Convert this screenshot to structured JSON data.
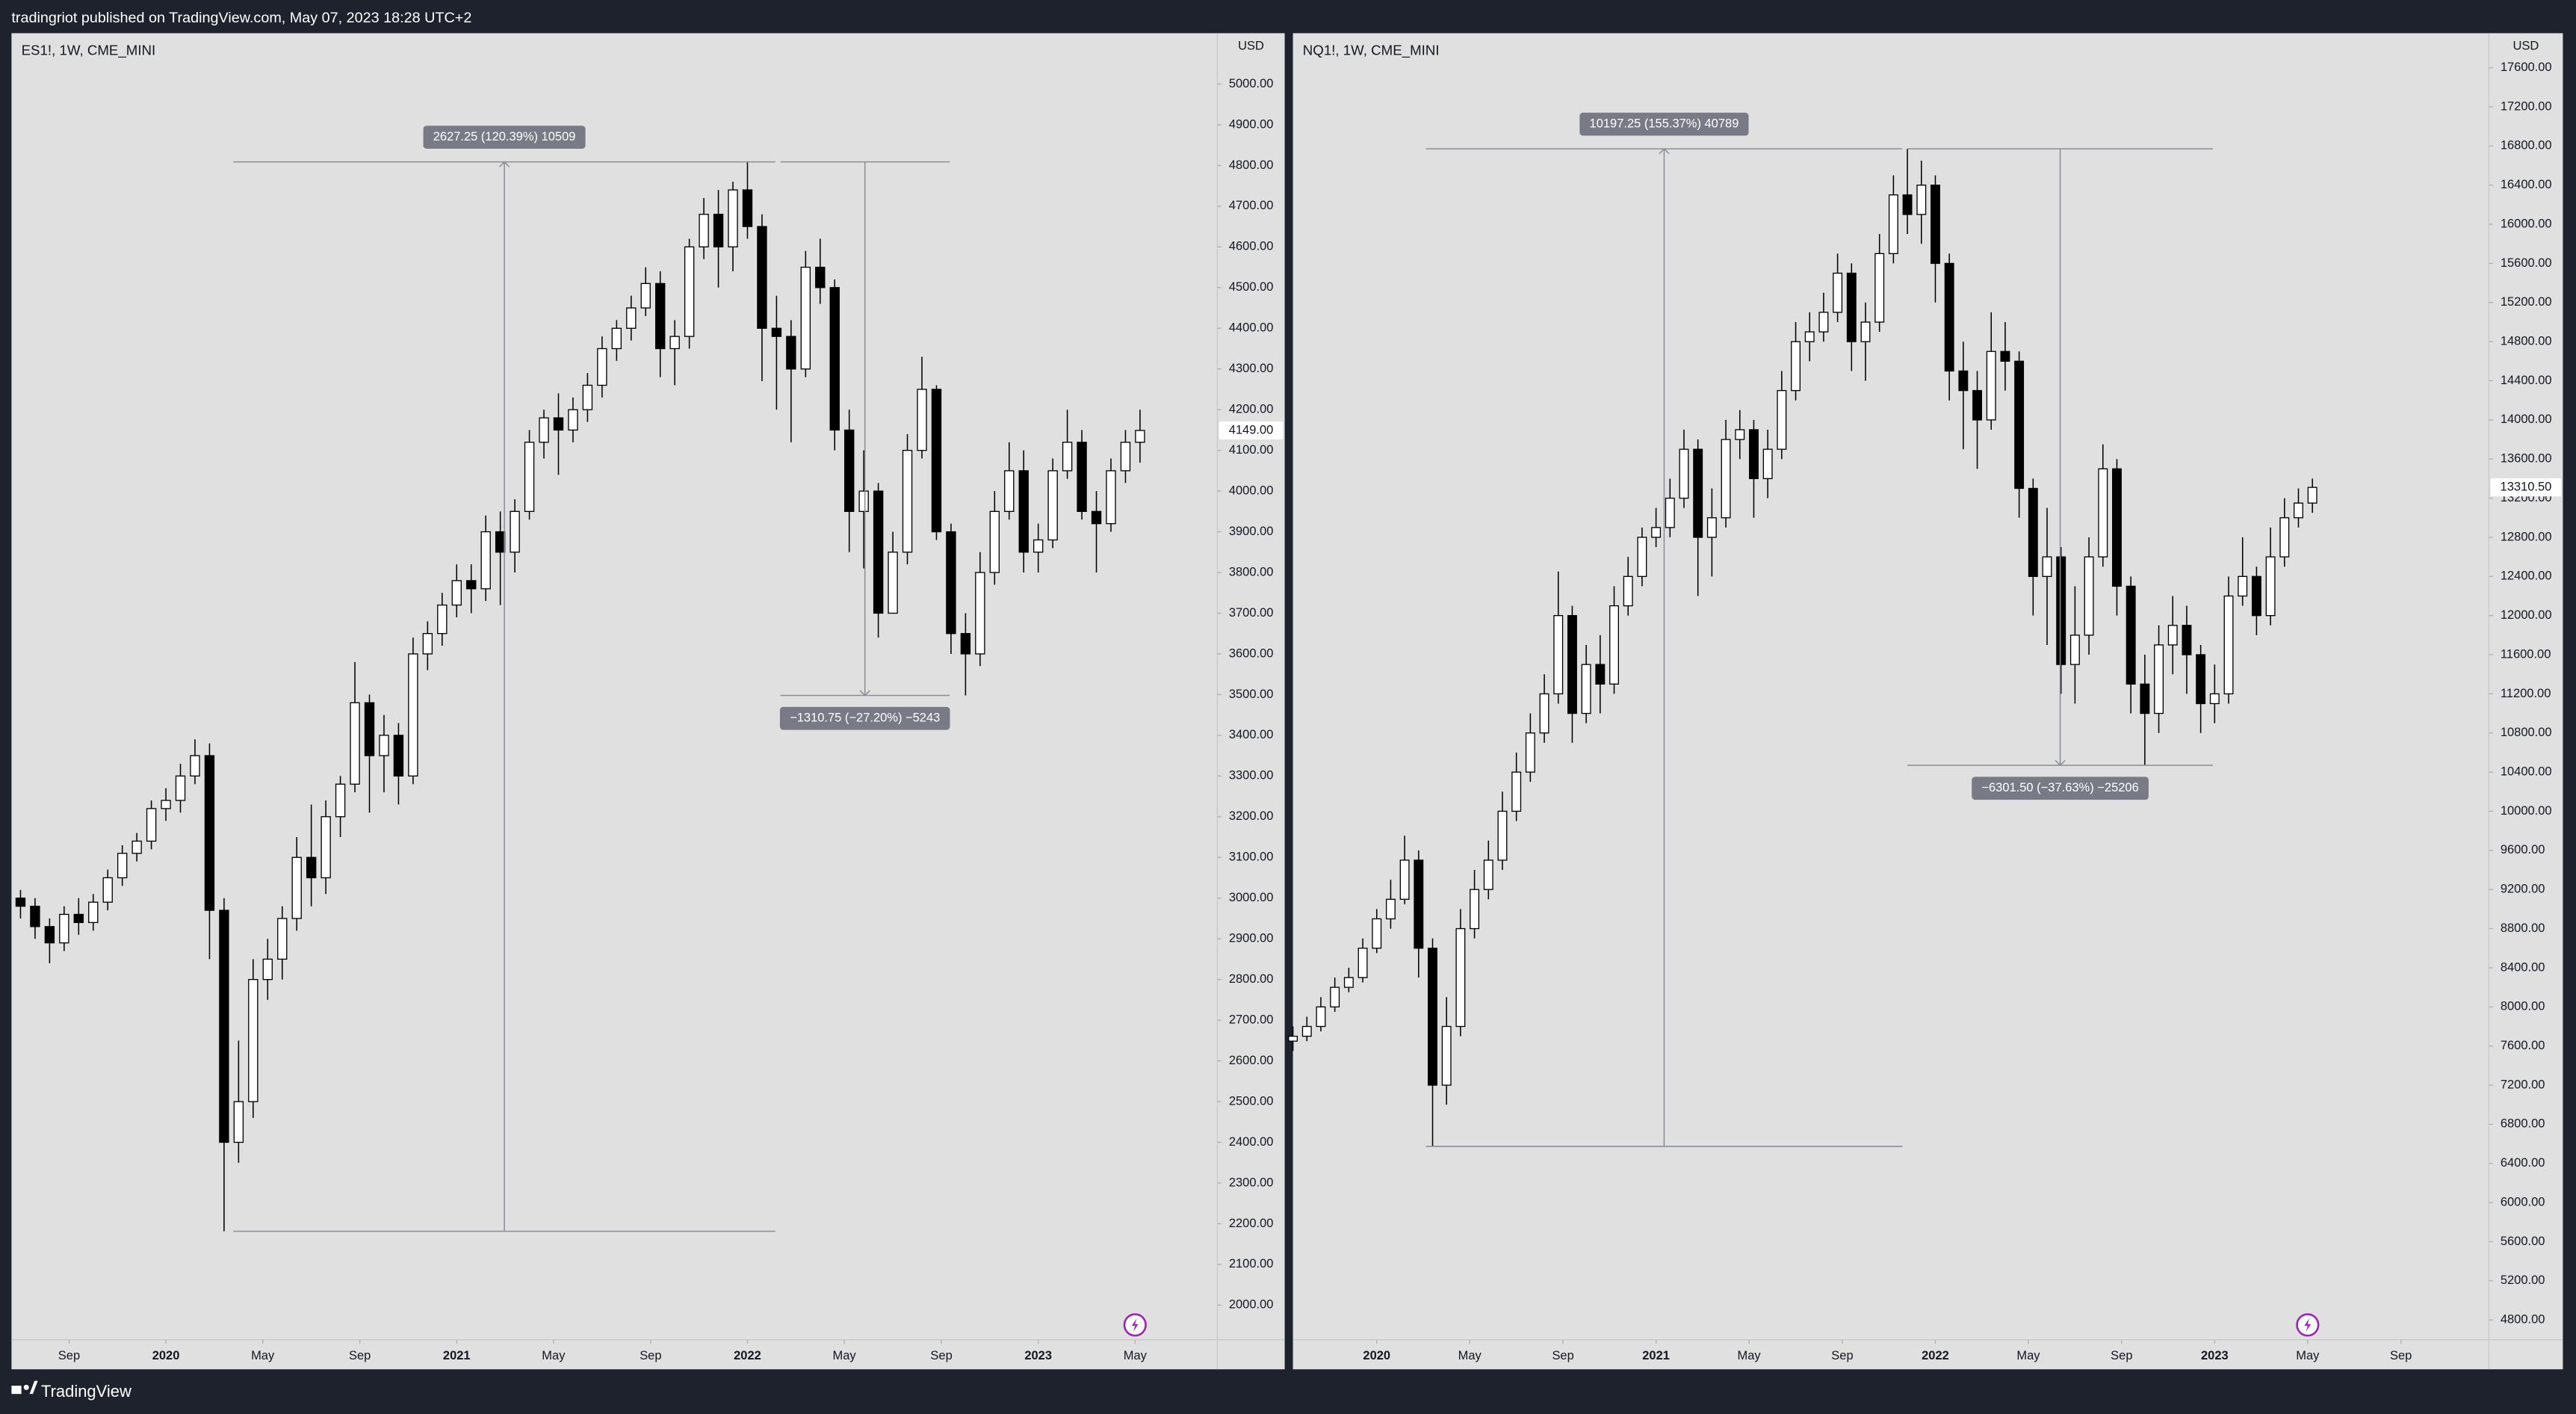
{
  "header": "tradingriot published on TradingView.com, May 07, 2023 18:28 UTC+2",
  "footer": "TradingView",
  "chart_data": [
    {
      "type": "candlestick",
      "title": "ES1!, 1W, CME_MINI",
      "currency": "USD",
      "up_color": "#ffffff",
      "down_color": "#000000",
      "wick_color": "#000000",
      "grid": false,
      "x": [
        2019.5,
        2019.55,
        2019.6,
        2019.65,
        2019.7,
        2019.75,
        2019.8,
        2019.85,
        2019.9,
        2019.95,
        2020,
        2020.05,
        2020.1,
        2020.15,
        2020.2,
        2020.25,
        2020.3,
        2020.35,
        2020.4,
        2020.45,
        2020.5,
        2020.55,
        2020.6,
        2020.65,
        2020.7,
        2020.75,
        2020.8,
        2020.85,
        2020.9,
        2020.95,
        2021,
        2021.05,
        2021.1,
        2021.15,
        2021.2,
        2021.25,
        2021.3,
        2021.35,
        2021.4,
        2021.45,
        2021.5,
        2021.55,
        2021.6,
        2021.65,
        2021.7,
        2021.75,
        2021.8,
        2021.85,
        2021.9,
        2021.95,
        2022,
        2022.05,
        2022.1,
        2022.15,
        2022.2,
        2022.25,
        2022.3,
        2022.35,
        2022.4,
        2022.45,
        2022.5,
        2022.55,
        2022.6,
        2022.65,
        2022.7,
        2022.75,
        2022.8,
        2022.85,
        2022.9,
        2022.95,
        2023,
        2023.05,
        2023.1,
        2023.15,
        2023.2,
        2023.25,
        2023.3,
        2023.35
      ],
      "open": [
        3000,
        2980,
        2930,
        2890,
        2960,
        2940,
        2990,
        3050,
        3110,
        3140,
        3220,
        3240,
        3300,
        3350,
        2970,
        2400,
        2500,
        2800,
        2850,
        2950,
        3100,
        3050,
        3200,
        3280,
        3480,
        3350,
        3400,
        3300,
        3600,
        3650,
        3720,
        3780,
        3760,
        3900,
        3850,
        3950,
        4120,
        4180,
        4150,
        4200,
        4260,
        4350,
        4400,
        4450,
        4510,
        4350,
        4380,
        4600,
        4680,
        4600,
        4740,
        4650,
        4400,
        4380,
        4300,
        4550,
        4500,
        4150,
        3950,
        4000,
        3700,
        3850,
        4100,
        4250,
        3900,
        3650,
        3600,
        3800,
        3950,
        4050,
        3850,
        3880,
        4050,
        4120,
        3950,
        3920,
        4050,
        4120
      ],
      "high": [
        3020,
        3000,
        2950,
        2980,
        3000,
        3010,
        3070,
        3130,
        3160,
        3240,
        3270,
        3330,
        3390,
        3380,
        3000,
        2650,
        2850,
        2900,
        2980,
        3150,
        3230,
        3240,
        3300,
        3580,
        3500,
        3450,
        3430,
        3640,
        3680,
        3750,
        3820,
        3820,
        3940,
        3950,
        3980,
        4150,
        4200,
        4240,
        4230,
        4290,
        4380,
        4420,
        4480,
        4550,
        4540,
        4420,
        4620,
        4720,
        4740,
        4760,
        4808.75,
        4680,
        4480,
        4420,
        4590,
        4620,
        4520,
        4200,
        4100,
        4020,
        3900,
        4140,
        4330,
        4260,
        3920,
        3700,
        3850,
        4000,
        4120,
        4100,
        3920,
        4080,
        4200,
        4150,
        4000,
        4080,
        4150,
        4200
      ],
      "low": [
        2950,
        2900,
        2840,
        2870,
        2910,
        2920,
        2970,
        3030,
        3090,
        3120,
        3190,
        3210,
        3280,
        2850,
        2181.5,
        2350,
        2460,
        2750,
        2800,
        2920,
        2980,
        3010,
        3150,
        3260,
        3210,
        3260,
        3230,
        3280,
        3560,
        3620,
        3690,
        3700,
        3730,
        3720,
        3800,
        3930,
        4080,
        4040,
        4120,
        4170,
        4230,
        4320,
        4370,
        4430,
        4280,
        4260,
        4350,
        4570,
        4500,
        4540,
        4620,
        4270,
        4200,
        4120,
        4280,
        4460,
        4100,
        3850,
        3810,
        3640,
        3700,
        3820,
        4080,
        3880,
        3600,
        3498,
        3570,
        3770,
        3930,
        3800,
        3800,
        3860,
        4030,
        3930,
        3800,
        3900,
        4020,
        4070
      ],
      "close": [
        2980,
        2930,
        2890,
        2960,
        2940,
        2990,
        3050,
        3110,
        3140,
        3220,
        3240,
        3300,
        3350,
        2970,
        2400,
        2500,
        2800,
        2850,
        2950,
        3100,
        3050,
        3200,
        3280,
        3480,
        3350,
        3400,
        3300,
        3600,
        3650,
        3720,
        3780,
        3760,
        3900,
        3850,
        3950,
        4120,
        4180,
        4150,
        4200,
        4260,
        4350,
        4400,
        4450,
        4510,
        4350,
        4380,
        4600,
        4680,
        4600,
        4740,
        4650,
        4400,
        4380,
        4300,
        4550,
        4500,
        4150,
        3950,
        4000,
        3700,
        3850,
        4100,
        4250,
        3900,
        3650,
        3600,
        3800,
        3950,
        4050,
        3850,
        3880,
        4050,
        4120,
        3950,
        3920,
        4050,
        4120,
        4149
      ],
      "last_price": {
        "value": 4149,
        "label": "4149.00"
      },
      "measures": [
        {
          "label": "2627.25 (120.39%) 10509",
          "x": [
            2020.232,
            2022.096
          ],
          "y": [
            2181.5,
            4808.75
          ]
        },
        {
          "label": "−1310.75 (−27.20%) −5243",
          "x": [
            2022.113,
            2022.695
          ],
          "y": [
            4808.75,
            3498
          ]
        }
      ],
      "xlim": [
        2019.469,
        2023.616
      ],
      "xticks": [
        {
          "value": 2019.667,
          "label": "Sep"
        },
        2020,
        {
          "value": 2020.333,
          "label": "May"
        },
        {
          "value": 2020.667,
          "label": "Sep"
        },
        2021,
        {
          "value": 2021.333,
          "label": "May"
        },
        {
          "value": 2021.667,
          "label": "Sep"
        },
        2022,
        {
          "value": 2022.333,
          "label": "May"
        },
        {
          "value": 2022.667,
          "label": "Sep"
        },
        2023,
        {
          "value": 2023.333,
          "label": "May"
        }
      ],
      "ylim": [
        1915,
        5125
      ],
      "yticks": [
        {
          "value": 2000,
          "label": "2000.00"
        },
        {
          "value": 2100,
          "label": "2100.00"
        },
        {
          "value": 2200,
          "label": "2200.00"
        },
        {
          "value": 2300,
          "label": "2300.00"
        },
        {
          "value": 2400,
          "label": "2400.00"
        },
        {
          "value": 2500,
          "label": "2500.00"
        },
        {
          "value": 2600,
          "label": "2600.00"
        },
        {
          "value": 2700,
          "label": "2700.00"
        },
        {
          "value": 2800,
          "label": "2800.00"
        },
        {
          "value": 2900,
          "label": "2900.00"
        },
        {
          "value": 3000,
          "label": "3000.00"
        },
        {
          "value": 3100,
          "label": "3100.00"
        },
        {
          "value": 3200,
          "label": "3200.00"
        },
        {
          "value": 3300,
          "label": "3300.00"
        },
        {
          "value": 3400,
          "label": "3400.00"
        },
        {
          "value": 3500,
          "label": "3500.00"
        },
        {
          "value": 3600,
          "label": "3600.00"
        },
        {
          "value": 3700,
          "label": "3700.00"
        },
        {
          "value": 3800,
          "label": "3800.00"
        },
        {
          "value": 3900,
          "label": "3900.00"
        },
        {
          "value": 4000,
          "label": "4000.00"
        },
        {
          "value": 4100,
          "label": "4100.00"
        },
        {
          "value": 4200,
          "label": "4200.00"
        },
        {
          "value": 4300,
          "label": "4300.00"
        },
        {
          "value": 4400,
          "label": "4400.00"
        },
        {
          "value": 4500,
          "label": "4500.00"
        },
        {
          "value": 4600,
          "label": "4600.00"
        },
        {
          "value": 4700,
          "label": "4700.00"
        },
        {
          "value": 4800,
          "label": "4800.00"
        },
        {
          "value": 4900,
          "label": "4900.00"
        },
        {
          "value": 5000,
          "label": "5000.00"
        }
      ]
    },
    {
      "type": "candlestick",
      "title": "NQ1!, 1W, CME_MINI",
      "currency": "USD",
      "up_color": "#ffffff",
      "down_color": "#000000",
      "wick_color": "#000000",
      "grid": false,
      "x": [
        2019.7,
        2019.75,
        2019.8,
        2019.85,
        2019.9,
        2019.95,
        2020,
        2020.05,
        2020.1,
        2020.15,
        2020.2,
        2020.25,
        2020.3,
        2020.35,
        2020.4,
        2020.45,
        2020.5,
        2020.55,
        2020.6,
        2020.65,
        2020.7,
        2020.75,
        2020.8,
        2020.85,
        2020.9,
        2020.95,
        2021,
        2021.05,
        2021.1,
        2021.15,
        2021.2,
        2021.25,
        2021.3,
        2021.35,
        2021.4,
        2021.45,
        2021.5,
        2021.55,
        2021.6,
        2021.65,
        2021.7,
        2021.75,
        2021.8,
        2021.85,
        2021.9,
        2021.95,
        2022,
        2022.05,
        2022.1,
        2022.15,
        2022.2,
        2022.25,
        2022.3,
        2022.35,
        2022.4,
        2022.45,
        2022.5,
        2022.55,
        2022.6,
        2022.65,
        2022.7,
        2022.75,
        2022.8,
        2022.85,
        2022.9,
        2022.95,
        2023,
        2023.05,
        2023.1,
        2023.15,
        2023.2,
        2023.25,
        2023.3,
        2023.35
      ],
      "open": [
        7650,
        7700,
        7800,
        8000,
        8200,
        8300,
        8600,
        8900,
        9100,
        9500,
        8600,
        7200,
        7800,
        8800,
        9200,
        9500,
        10000,
        10400,
        10800,
        11200,
        12000,
        11000,
        11500,
        11300,
        12100,
        12400,
        12800,
        12900,
        13200,
        13700,
        12800,
        13000,
        13800,
        13900,
        13400,
        13700,
        14300,
        14800,
        14900,
        15100,
        15500,
        14800,
        15000,
        15700,
        16300,
        16100,
        16400,
        15600,
        14500,
        14300,
        14000,
        14700,
        14600,
        13300,
        12400,
        12600,
        11500,
        11800,
        12600,
        13500,
        12300,
        11300,
        11000,
        11700,
        11900,
        11600,
        11100,
        11200,
        12200,
        12400,
        12000,
        12600,
        13000,
        13150
      ],
      "high": [
        7800,
        7900,
        8100,
        8300,
        8400,
        8700,
        9000,
        9300,
        9750,
        9600,
        8700,
        8100,
        9000,
        9400,
        9700,
        10200,
        10600,
        11000,
        11400,
        12450,
        12100,
        11700,
        11800,
        12300,
        12600,
        12900,
        13100,
        13400,
        13900,
        13800,
        13300,
        14000,
        14100,
        14000,
        13900,
        14500,
        15000,
        15100,
        15300,
        15700,
        15600,
        15200,
        15900,
        16500,
        16771.25,
        16650,
        16500,
        15700,
        14800,
        14500,
        15100,
        15000,
        14700,
        13400,
        13100,
        12700,
        12300,
        12800,
        13750,
        13600,
        12400,
        11600,
        11900,
        12200,
        12100,
        11700,
        11500,
        12400,
        12800,
        12500,
        12900,
        13200,
        13300,
        13400
      ],
      "low": [
        7550,
        7650,
        7750,
        7950,
        8150,
        8250,
        8550,
        8800,
        9050,
        8300,
        6574,
        7000,
        7700,
        8700,
        9100,
        9400,
        9900,
        10300,
        10700,
        11100,
        10700,
        10900,
        11000,
        11200,
        12000,
        12300,
        12700,
        12800,
        13100,
        12200,
        12400,
        12900,
        13600,
        13000,
        13200,
        13600,
        14200,
        14600,
        14800,
        15000,
        14500,
        14400,
        14900,
        15600,
        15900,
        15800,
        15200,
        14200,
        13700,
        13500,
        13900,
        14300,
        13000,
        12000,
        11700,
        11200,
        11100,
        11600,
        12500,
        12000,
        11000,
        10469.75,
        10800,
        11400,
        11200,
        10800,
        10900,
        11100,
        12100,
        11800,
        11900,
        12500,
        12900,
        13050
      ],
      "close": [
        7700,
        7800,
        8000,
        8200,
        8300,
        8600,
        8900,
        9100,
        9500,
        8600,
        7200,
        7800,
        8800,
        9200,
        9500,
        10000,
        10400,
        10800,
        11200,
        12000,
        11000,
        11500,
        11300,
        12100,
        12400,
        12800,
        12900,
        13200,
        13700,
        12800,
        13000,
        13800,
        13900,
        13400,
        13700,
        14300,
        14800,
        14900,
        15100,
        15500,
        14800,
        15000,
        15700,
        16300,
        16100,
        16400,
        15600,
        14500,
        14300,
        14000,
        14700,
        14600,
        13300,
        12400,
        12600,
        11500,
        11800,
        12600,
        13500,
        12300,
        11300,
        11000,
        11700,
        11900,
        11600,
        11100,
        11200,
        12200,
        12400,
        12000,
        12600,
        13000,
        13150,
        13310.5
      ],
      "last_price": {
        "value": 13310.5,
        "label": "13310.50"
      },
      "measures": [
        {
          "label": "10197.25 (155.37%) 40789",
          "x": [
            2020.176,
            2021.882
          ],
          "y": [
            6574,
            16771.25
          ]
        },
        {
          "label": "−6301.50 (−37.63%) −25206",
          "x": [
            2021.9,
            2022.994
          ],
          "y": [
            16771.25,
            10469.75
          ]
        }
      ],
      "xlim": [
        2019.7,
        2023.982
      ],
      "xticks": [
        2020,
        {
          "value": 2020.333,
          "label": "May"
        },
        {
          "value": 2020.667,
          "label": "Sep"
        },
        2021,
        {
          "value": 2021.333,
          "label": "May"
        },
        {
          "value": 2021.667,
          "label": "Sep"
        },
        2022,
        {
          "value": 2022.333,
          "label": "May"
        },
        {
          "value": 2022.667,
          "label": "Sep"
        },
        2023,
        {
          "value": 2023.333,
          "label": "May"
        },
        {
          "value": 2023.667,
          "label": "Sep"
        }
      ],
      "ylim": [
        4598,
        17953
      ],
      "yticks": [
        {
          "value": 4800,
          "label": "4800.00"
        },
        {
          "value": 5200,
          "label": "5200.00"
        },
        {
          "value": 5600,
          "label": "5600.00"
        },
        {
          "value": 6000,
          "label": "6000.00"
        },
        {
          "value": 6400,
          "label": "6400.00"
        },
        {
          "value": 6800,
          "label": "6800.00"
        },
        {
          "value": 7200,
          "label": "7200.00"
        },
        {
          "value": 7600,
          "label": "7600.00"
        },
        {
          "value": 8000,
          "label": "8000.00"
        },
        {
          "value": 8400,
          "label": "8400.00"
        },
        {
          "value": 8800,
          "label": "8800.00"
        },
        {
          "value": 9200,
          "label": "9200.00"
        },
        {
          "value": 9600,
          "label": "9600.00"
        },
        {
          "value": 10000,
          "label": "10000.00"
        },
        {
          "value": 10400,
          "label": "10400.00"
        },
        {
          "value": 10800,
          "label": "10800.00"
        },
        {
          "value": 11200,
          "label": "11200.00"
        },
        {
          "value": 11600,
          "label": "11600.00"
        },
        {
          "value": 12000,
          "label": "12000.00"
        },
        {
          "value": 12400,
          "label": "12400.00"
        },
        {
          "value": 12800,
          "label": "12800.00"
        },
        {
          "value": 13200,
          "label": "13200.00"
        },
        {
          "value": 13600,
          "label": "13600.00"
        },
        {
          "value": 14000,
          "label": "14000.00"
        },
        {
          "value": 14400,
          "label": "14400.00"
        },
        {
          "value": 14800,
          "label": "14800.00"
        },
        {
          "value": 15200,
          "label": "15200.00"
        },
        {
          "value": 15600,
          "label": "15600.00"
        },
        {
          "value": 16000,
          "label": "16000.00"
        },
        {
          "value": 16400,
          "label": "16400.00"
        },
        {
          "value": 16800,
          "label": "16800.00"
        },
        {
          "value": 17200,
          "label": "17200.00"
        },
        {
          "value": 17600,
          "label": "17600.00"
        }
      ]
    }
  ]
}
